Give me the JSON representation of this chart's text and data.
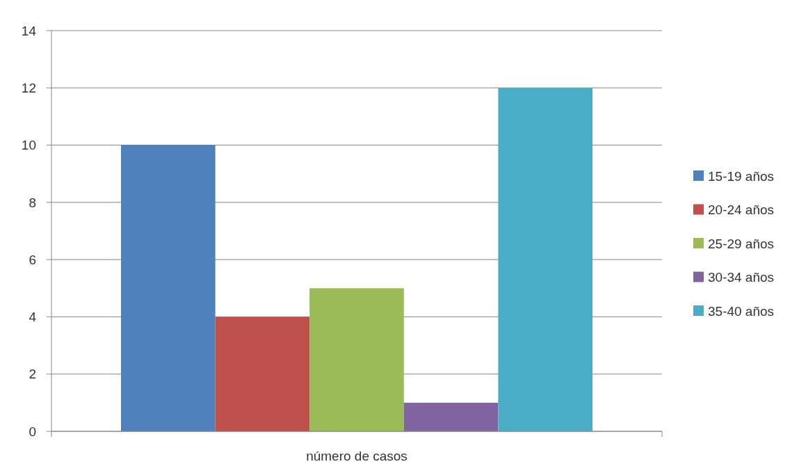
{
  "chart_data": {
    "type": "bar",
    "categories": [
      "número de casos"
    ],
    "series": [
      {
        "name": "15-19 años",
        "color": "#4f81bd",
        "values": [
          10
        ]
      },
      {
        "name": "20-24 años",
        "color": "#c0504d",
        "values": [
          4
        ]
      },
      {
        "name": "25-29 años",
        "color": "#9bbb59",
        "values": [
          5
        ]
      },
      {
        "name": "30-34 años",
        "color": "#8064a2",
        "values": [
          1
        ]
      },
      {
        "name": "35-40 años",
        "color": "#4bacc6",
        "values": [
          12
        ]
      }
    ],
    "ylim": [
      0,
      14
    ],
    "yticks": [
      0,
      2,
      4,
      6,
      8,
      10,
      12,
      14
    ],
    "grid": "y",
    "legend": "right"
  }
}
